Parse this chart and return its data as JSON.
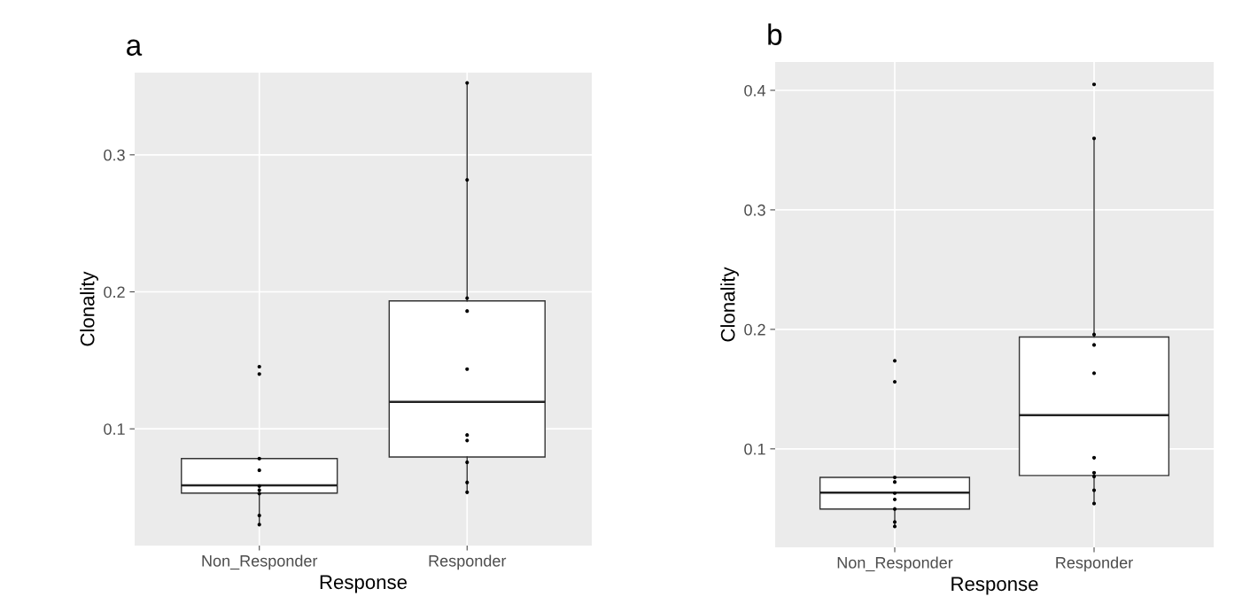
{
  "chart_data": [
    {
      "type": "box",
      "title": "a",
      "xlabel": "Response",
      "ylabel": "Clonality",
      "categories": [
        "Non_Responder",
        "Responder"
      ],
      "boxes": [
        {
          "low": 0.0303,
          "q1": 0.0531,
          "median": 0.0587,
          "q3": 0.0783,
          "high": 0.0783
        },
        {
          "low": 0.0537,
          "q1": 0.0794,
          "median": 0.1197,
          "q3": 0.1934,
          "high": 0.3525
        }
      ],
      "series": [
        {
          "type": "scatter",
          "color": "#000000",
          "x": [
            "Non_Responder",
            "Non_Responder",
            "Non_Responder",
            "Non_Responder",
            "Non_Responder",
            "Non_Responder",
            "Non_Responder",
            "Non_Responder",
            "Non_Responder",
            "Responder",
            "Responder",
            "Responder",
            "Responder",
            "Responder",
            "Responder",
            "Responder",
            "Responder",
            "Responder",
            "Responder"
          ],
          "values": [
            0.0783,
            0.0698,
            0.0582,
            0.0553,
            0.0528,
            0.0368,
            0.0301,
            0.1454,
            0.14,
            0.3525,
            0.2817,
            0.1954,
            0.186,
            0.1436,
            0.0955,
            0.0915,
            0.0756,
            0.0609,
            0.0537
          ]
        }
      ],
      "ylim": [
        0.0148,
        0.36
      ],
      "yticks": [
        0.1,
        0.2,
        0.3
      ],
      "grid": true,
      "legend": false
    },
    {
      "type": "box",
      "title": "b",
      "xlabel": "Response",
      "ylabel": "Clonality",
      "categories": [
        "Non_Responder",
        "Responder"
      ],
      "boxes": [
        {
          "low": 0.0354,
          "q1": 0.0497,
          "median": 0.0633,
          "q3": 0.0761,
          "high": 0.0761
        },
        {
          "low": 0.0551,
          "q1": 0.0777,
          "median": 0.1282,
          "q3": 0.1936,
          "high": 0.3598
        }
      ],
      "series": [
        {
          "type": "scatter",
          "color": "#000000",
          "x": [
            "Non_Responder",
            "Non_Responder",
            "Non_Responder",
            "Non_Responder",
            "Non_Responder",
            "Non_Responder",
            "Non_Responder",
            "Non_Responder",
            "Non_Responder",
            "Responder",
            "Responder",
            "Responder",
            "Responder",
            "Responder",
            "Responder",
            "Responder",
            "Responder",
            "Responder",
            "Responder"
          ],
          "values": [
            0.0761,
            0.0723,
            0.063,
            0.0577,
            0.0497,
            0.0388,
            0.0351,
            0.1737,
            0.1561,
            0.405,
            0.3598,
            0.1957,
            0.187,
            0.1633,
            0.0926,
            0.08,
            0.0769,
            0.0654,
            0.0543
          ]
        }
      ],
      "ylim": [
        0.0176,
        0.4237
      ],
      "yticks": [
        0.1,
        0.2,
        0.3,
        0.4
      ],
      "grid": true,
      "legend": false
    }
  ]
}
